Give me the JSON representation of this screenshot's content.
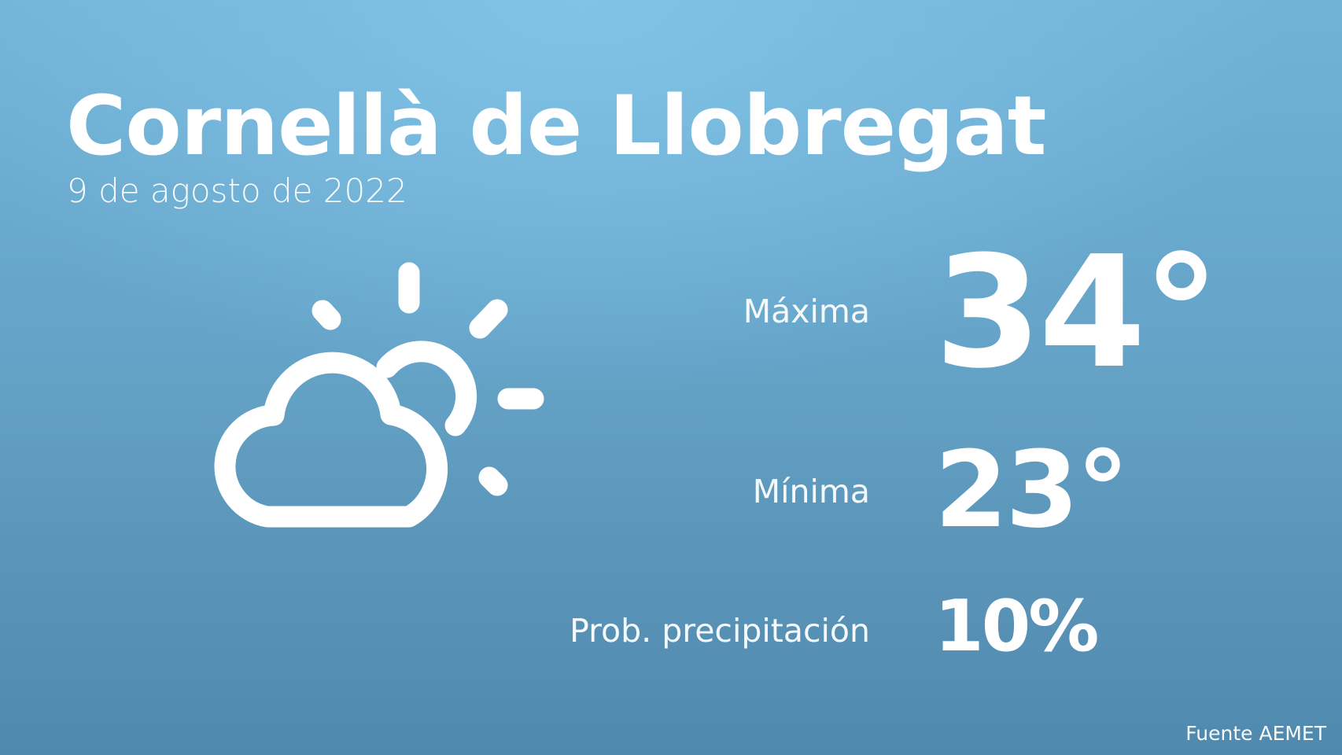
{
  "header": {
    "title": "Cornellà de Llobregat",
    "date": "9 de agosto de 2022"
  },
  "weather": {
    "icon": "partly-cloudy-icon",
    "max_label": "Máxima",
    "max_value": "34°",
    "min_label": "Mínima",
    "min_value": "23°",
    "precip_label": "Prob. precipitación",
    "precip_value": "10%"
  },
  "footer": {
    "source": "Fuente AEMET"
  },
  "colors": {
    "background_top": "#7bbfe2",
    "background_bottom": "#4f89ad",
    "text": "#ffffff"
  }
}
